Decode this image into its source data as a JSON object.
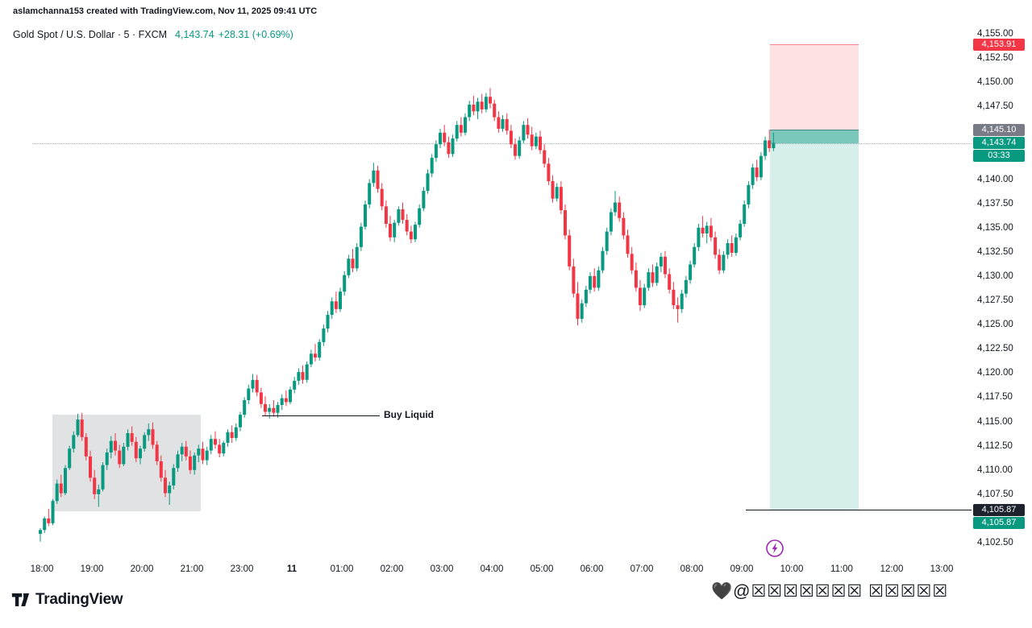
{
  "attribution": "aslamchanna153 created with TradingView.com, Nov 11, 2025 09:41 UTC",
  "header": {
    "title": "Gold Spot / U.S. Dollar · 5 · FXCM",
    "price": "4,143.74",
    "change": "+28.31 (+0.69%)"
  },
  "colors": {
    "up": "#089981",
    "down": "#f23645",
    "accent_text": "#089981",
    "risk_fill": "rgba(242,54,69,0.15)",
    "reward_fill": "rgba(8,153,129,0.16)",
    "pl_fill": "rgba(8,153,129,0.45)",
    "box_fill": "rgba(120,123,134,0.22)",
    "marker_purple": "#9c27b0",
    "text": "#131722"
  },
  "price_axis": {
    "ticks": [
      {
        "label": "4,155.00",
        "price": 4155.0
      },
      {
        "label": "4,152.50",
        "price": 4152.5
      },
      {
        "label": "4,150.00",
        "price": 4150.0
      },
      {
        "label": "4,147.50",
        "price": 4147.5
      },
      {
        "label": "4,140.00",
        "price": 4140.0
      },
      {
        "label": "4,137.50",
        "price": 4137.5
      },
      {
        "label": "4,135.00",
        "price": 4135.0
      },
      {
        "label": "4,132.50",
        "price": 4132.5
      },
      {
        "label": "4,130.00",
        "price": 4130.0
      },
      {
        "label": "4,127.50",
        "price": 4127.5
      },
      {
        "label": "4,125.00",
        "price": 4125.0
      },
      {
        "label": "4,122.50",
        "price": 4122.5
      },
      {
        "label": "4,120.00",
        "price": 4120.0
      },
      {
        "label": "4,117.50",
        "price": 4117.5
      },
      {
        "label": "4,115.00",
        "price": 4115.0
      },
      {
        "label": "4,112.50",
        "price": 4112.5
      },
      {
        "label": "4,110.00",
        "price": 4110.0
      },
      {
        "label": "4,107.50",
        "price": 4107.5
      },
      {
        "label": "4,102.50",
        "price": 4102.5
      }
    ],
    "badges": {
      "stop": {
        "label": "4,153.91",
        "price": 4153.91,
        "bg": "#f23645"
      },
      "entry": {
        "label": "4,145.10",
        "price": 4145.1,
        "bg": "#787b86"
      },
      "last": {
        "label": "4,143.74",
        "price": 4143.74,
        "bg": "#089981"
      },
      "countdown": {
        "label": "03:33",
        "bg": "#089981"
      },
      "level_line": {
        "label": "4,105.87",
        "price": 4105.87,
        "bg": "#1e222d"
      },
      "target": {
        "label": "4,105.87",
        "price": 4105.87,
        "bg": "#089981"
      }
    }
  },
  "time_axis": {
    "labels": [
      "18:00",
      "19:00",
      "20:00",
      "21:00",
      "23:00",
      "11",
      "01:00",
      "02:00",
      "03:00",
      "04:00",
      "05:00",
      "06:00",
      "07:00",
      "08:00",
      "09:00",
      "10:00",
      "11:00",
      "12:00",
      "13:00"
    ]
  },
  "footer": {
    "logo_text": "TradingView",
    "watermark_right": "🖤@☒☒☒☒☒☒☒ ☒☒☒☒☒"
  },
  "chart_data": {
    "type": "candlestick",
    "symbol": "Gold Spot / U.S. Dollar",
    "interval_minutes": 5,
    "exchange": "FXCM",
    "last_price": 4143.74,
    "change_text": "+28.31 (+0.69%)",
    "ylim": [
      4102.5,
      4155.0
    ],
    "session_note": "candles run 18:00-21:55 then 23:00-09:40 (22:00 hour closed)",
    "grid": "off",
    "annotations": {
      "short_position": {
        "entry": 4145.1,
        "stop": 4153.91,
        "target": 4105.87
      },
      "horizontal_line": 4105.87,
      "buy_liquid": {
        "text": "Buy Liquid",
        "price": 4115.6
      },
      "consolidation_box": {
        "price_high": 4115.7,
        "price_low": 4105.7
      },
      "marker_icon": "lightning-icon"
    },
    "candles": [
      [
        4103.4,
        4104.0,
        4102.6,
        4103.8
      ],
      [
        4103.8,
        4105.2,
        4103.5,
        4105.0
      ],
      [
        4105.0,
        4106.0,
        4104.2,
        4104.5
      ],
      [
        4104.5,
        4107.0,
        4104.3,
        4106.8
      ],
      [
        4106.8,
        4109.0,
        4106.5,
        4108.6
      ],
      [
        4108.6,
        4109.5,
        4107.2,
        4107.6
      ],
      [
        4107.6,
        4110.5,
        4107.4,
        4110.2
      ],
      [
        4110.2,
        4112.5,
        4110.0,
        4112.2
      ],
      [
        4112.2,
        4114.0,
        4111.8,
        4113.6
      ],
      [
        4113.6,
        4115.8,
        4113.4,
        4115.2
      ],
      [
        4115.2,
        4115.9,
        4113.0,
        4113.4
      ],
      [
        4113.4,
        4113.8,
        4111.0,
        4111.4
      ],
      [
        4111.4,
        4112.0,
        4108.8,
        4109.2
      ],
      [
        4109.2,
        4110.0,
        4107.0,
        4107.5
      ],
      [
        4107.5,
        4108.5,
        4106.2,
        4108.0
      ],
      [
        4108.0,
        4110.8,
        4107.8,
        4110.5
      ],
      [
        4110.5,
        4112.2,
        4110.0,
        4111.8
      ],
      [
        4111.8,
        4113.5,
        4111.2,
        4113.0
      ],
      [
        4113.0,
        4113.8,
        4111.5,
        4112.0
      ],
      [
        4112.0,
        4112.6,
        4110.2,
        4110.6
      ],
      [
        4110.6,
        4112.8,
        4110.4,
        4112.4
      ],
      [
        4112.4,
        4114.2,
        4112.0,
        4113.8
      ],
      [
        4113.8,
        4114.5,
        4112.5,
        4112.9
      ],
      [
        4112.9,
        4113.4,
        4110.8,
        4111.2
      ],
      [
        4111.2,
        4112.5,
        4110.6,
        4112.2
      ],
      [
        4112.2,
        4113.9,
        4111.9,
        4113.6
      ],
      [
        4113.6,
        4114.8,
        4113.0,
        4114.2
      ],
      [
        4114.2,
        4114.9,
        4112.2,
        4112.6
      ],
      [
        4112.6,
        4113.0,
        4110.5,
        4110.9
      ],
      [
        4110.9,
        4111.5,
        4108.8,
        4109.2
      ],
      [
        4109.2,
        4110.0,
        4107.2,
        4107.6
      ],
      [
        4107.6,
        4108.8,
        4106.4,
        4108.4
      ],
      [
        4108.4,
        4110.6,
        4108.0,
        4110.2
      ],
      [
        4110.2,
        4112.0,
        4109.8,
        4111.6
      ],
      [
        4111.6,
        4112.8,
        4110.9,
        4112.4
      ],
      [
        4112.4,
        4113.0,
        4111.0,
        4111.4
      ],
      [
        4111.4,
        4112.0,
        4109.6,
        4110.0
      ],
      [
        4110.0,
        4111.8,
        4109.5,
        4111.5
      ],
      [
        4111.5,
        4112.6,
        4110.8,
        4112.2
      ],
      [
        4112.2,
        4112.9,
        4110.6,
        4111.0
      ],
      [
        4111.0,
        4112.4,
        4110.5,
        4112.0
      ],
      [
        4112.0,
        4113.6,
        4111.6,
        4113.2
      ],
      [
        4113.2,
        4114.0,
        4112.2,
        4112.6
      ],
      [
        4112.6,
        4113.2,
        4111.3,
        4111.7
      ],
      [
        4111.7,
        4113.0,
        4111.4,
        4112.8
      ],
      [
        4112.8,
        4114.2,
        4112.4,
        4113.9
      ],
      [
        4113.9,
        4114.6,
        4112.8,
        4113.3
      ],
      [
        4113.3,
        4114.8,
        4113.0,
        4114.4
      ],
      [
        4114.4,
        4116.0,
        4114.0,
        4115.7
      ],
      [
        4115.7,
        4117.5,
        4115.4,
        4117.2
      ],
      [
        4117.2,
        4118.8,
        4116.8,
        4118.4
      ],
      [
        4118.4,
        4119.9,
        4118.0,
        4119.3
      ],
      [
        4119.3,
        4119.8,
        4117.6,
        4118.0
      ],
      [
        4118.0,
        4118.5,
        4116.4,
        4116.8
      ],
      [
        4116.8,
        4117.6,
        4115.6,
        4116.0
      ],
      [
        4116.0,
        4116.8,
        4115.3,
        4116.4
      ],
      [
        4116.4,
        4117.2,
        4115.5,
        4115.9
      ],
      [
        4115.9,
        4117.0,
        4115.4,
        4116.7
      ],
      [
        4116.7,
        4117.8,
        4116.2,
        4117.4
      ],
      [
        4117.4,
        4118.2,
        4116.6,
        4117.0
      ],
      [
        4117.0,
        4118.6,
        4116.8,
        4118.3
      ],
      [
        4118.3,
        4119.6,
        4117.9,
        4119.2
      ],
      [
        4119.2,
        4120.5,
        4118.8,
        4120.1
      ],
      [
        4120.1,
        4120.8,
        4118.9,
        4119.3
      ],
      [
        4119.3,
        4121.2,
        4119.0,
        4120.9
      ],
      [
        4120.9,
        4122.4,
        4120.6,
        4122.0
      ],
      [
        4122.0,
        4123.0,
        4121.2,
        4121.6
      ],
      [
        4121.6,
        4123.5,
        4121.3,
        4123.2
      ],
      [
        4123.2,
        4125.0,
        4122.8,
        4124.6
      ],
      [
        4124.6,
        4126.4,
        4124.2,
        4126.0
      ],
      [
        4126.0,
        4127.8,
        4125.6,
        4127.4
      ],
      [
        4127.4,
        4128.4,
        4126.2,
        4126.6
      ],
      [
        4126.6,
        4128.8,
        4126.3,
        4128.4
      ],
      [
        4128.4,
        4130.5,
        4128.0,
        4130.1
      ],
      [
        4130.1,
        4132.2,
        4129.8,
        4131.8
      ],
      [
        4131.8,
        4132.8,
        4130.4,
        4130.8
      ],
      [
        4130.8,
        4133.4,
        4130.5,
        4133.0
      ],
      [
        4133.0,
        4135.5,
        4132.6,
        4135.1
      ],
      [
        4135.1,
        4137.8,
        4134.8,
        4137.4
      ],
      [
        4137.4,
        4140.0,
        4137.0,
        4139.6
      ],
      [
        4139.6,
        4141.7,
        4139.2,
        4140.9
      ],
      [
        4140.9,
        4141.4,
        4138.6,
        4139.0
      ],
      [
        4139.0,
        4139.6,
        4136.8,
        4137.2
      ],
      [
        4137.2,
        4137.8,
        4135.0,
        4135.4
      ],
      [
        4135.4,
        4136.2,
        4133.6,
        4134.0
      ],
      [
        4134.0,
        4135.8,
        4133.5,
        4135.5
      ],
      [
        4135.5,
        4137.2,
        4135.2,
        4136.9
      ],
      [
        4136.9,
        4137.6,
        4135.4,
        4135.8
      ],
      [
        4135.8,
        4136.4,
        4134.2,
        4134.6
      ],
      [
        4134.6,
        4135.2,
        4133.4,
        4133.8
      ],
      [
        4133.8,
        4135.6,
        4133.5,
        4135.3
      ],
      [
        4135.3,
        4137.4,
        4135.0,
        4137.0
      ],
      [
        4137.0,
        4139.2,
        4136.7,
        4138.8
      ],
      [
        4138.8,
        4141.0,
        4138.5,
        4140.6
      ],
      [
        4140.6,
        4142.6,
        4140.2,
        4142.2
      ],
      [
        4142.2,
        4144.0,
        4141.8,
        4143.6
      ],
      [
        4143.6,
        4145.2,
        4143.2,
        4144.8
      ],
      [
        4144.8,
        4145.6,
        4143.4,
        4143.8
      ],
      [
        4143.8,
        4144.4,
        4142.2,
        4142.6
      ],
      [
        4142.6,
        4144.6,
        4142.3,
        4144.2
      ],
      [
        4144.2,
        4146.0,
        4143.9,
        4145.6
      ],
      [
        4145.6,
        4146.4,
        4144.4,
        4144.8
      ],
      [
        4144.8,
        4146.8,
        4144.5,
        4146.4
      ],
      [
        4146.4,
        4148.1,
        4146.0,
        4147.7
      ],
      [
        4147.7,
        4148.6,
        4146.6,
        4147.0
      ],
      [
        4147.0,
        4148.4,
        4146.2,
        4148.0
      ],
      [
        4148.0,
        4148.8,
        4146.8,
        4147.2
      ],
      [
        4147.2,
        4148.9,
        4146.9,
        4148.5
      ],
      [
        4148.5,
        4149.4,
        4147.3,
        4147.8
      ],
      [
        4147.8,
        4148.2,
        4146.0,
        4146.4
      ],
      [
        4146.4,
        4147.0,
        4144.8,
        4145.2
      ],
      [
        4145.2,
        4146.6,
        4144.9,
        4146.2
      ],
      [
        4146.2,
        4146.8,
        4144.6,
        4145.0
      ],
      [
        4145.0,
        4145.6,
        4143.2,
        4143.6
      ],
      [
        4143.6,
        4144.2,
        4142.0,
        4142.4
      ],
      [
        4142.4,
        4144.4,
        4142.1,
        4144.0
      ],
      [
        4144.0,
        4146.0,
        4143.7,
        4145.6
      ],
      [
        4145.6,
        4146.3,
        4144.2,
        4144.6
      ],
      [
        4144.6,
        4145.4,
        4143.0,
        4143.4
      ],
      [
        4143.4,
        4144.8,
        4143.1,
        4144.4
      ],
      [
        4144.4,
        4145.0,
        4142.6,
        4143.0
      ],
      [
        4143.0,
        4143.6,
        4141.2,
        4141.6
      ],
      [
        4141.6,
        4142.2,
        4139.4,
        4139.8
      ],
      [
        4139.8,
        4140.4,
        4137.6,
        4138.0
      ],
      [
        4138.0,
        4139.6,
        4137.7,
        4139.2
      ],
      [
        4139.2,
        4139.8,
        4136.4,
        4136.8
      ],
      [
        4136.8,
        4137.4,
        4133.8,
        4134.2
      ],
      [
        4134.2,
        4134.8,
        4130.6,
        4131.0
      ],
      [
        4131.0,
        4131.8,
        4127.8,
        4128.2
      ],
      [
        4128.2,
        4129.4,
        4124.9,
        4125.6
      ],
      [
        4125.6,
        4127.6,
        4125.2,
        4127.2
      ],
      [
        4127.2,
        4129.0,
        4126.8,
        4128.6
      ],
      [
        4128.6,
        4130.4,
        4128.2,
        4130.0
      ],
      [
        4130.0,
        4130.8,
        4128.4,
        4128.8
      ],
      [
        4128.8,
        4131.0,
        4128.5,
        4130.6
      ],
      [
        4130.6,
        4133.0,
        4130.3,
        4132.6
      ],
      [
        4132.6,
        4135.0,
        4132.2,
        4134.6
      ],
      [
        4134.6,
        4137.0,
        4134.2,
        4136.6
      ],
      [
        4136.6,
        4138.8,
        4136.2,
        4137.6
      ],
      [
        4137.6,
        4138.2,
        4135.6,
        4136.0
      ],
      [
        4136.0,
        4136.6,
        4133.8,
        4134.2
      ],
      [
        4134.2,
        4134.8,
        4131.9,
        4132.3
      ],
      [
        4132.3,
        4133.0,
        4130.2,
        4130.6
      ],
      [
        4130.6,
        4131.4,
        4128.4,
        4128.8
      ],
      [
        4128.8,
        4129.6,
        4126.4,
        4127.0
      ],
      [
        4127.0,
        4129.2,
        4126.7,
        4128.8
      ],
      [
        4128.8,
        4130.8,
        4128.5,
        4130.4
      ],
      [
        4130.4,
        4131.2,
        4128.9,
        4129.3
      ],
      [
        4129.3,
        4131.4,
        4129.0,
        4131.0
      ],
      [
        4131.0,
        4132.4,
        4130.4,
        4132.0
      ],
      [
        4132.0,
        4132.6,
        4129.8,
        4130.2
      ],
      [
        4130.2,
        4130.8,
        4128.2,
        4128.6
      ],
      [
        4128.6,
        4129.4,
        4126.6,
        4127.0
      ],
      [
        4127.0,
        4127.8,
        4125.2,
        4126.6
      ],
      [
        4126.6,
        4128.6,
        4126.2,
        4128.2
      ],
      [
        4128.2,
        4130.0,
        4127.8,
        4129.6
      ],
      [
        4129.6,
        4131.6,
        4129.2,
        4131.2
      ],
      [
        4131.2,
        4133.4,
        4130.9,
        4133.0
      ],
      [
        4133.0,
        4135.4,
        4132.6,
        4135.0
      ],
      [
        4135.0,
        4136.2,
        4134.0,
        4134.4
      ],
      [
        4134.4,
        4135.6,
        4133.4,
        4135.2
      ],
      [
        4135.2,
        4136.0,
        4133.6,
        4134.0
      ],
      [
        4134.0,
        4134.6,
        4131.8,
        4132.2
      ],
      [
        4132.2,
        4132.8,
        4130.2,
        4130.6
      ],
      [
        4130.6,
        4132.6,
        4130.3,
        4132.2
      ],
      [
        4132.2,
        4133.8,
        4131.8,
        4133.4
      ],
      [
        4133.4,
        4134.2,
        4132.0,
        4132.4
      ],
      [
        4132.4,
        4134.4,
        4132.1,
        4134.0
      ],
      [
        4134.0,
        4135.8,
        4133.7,
        4135.4
      ],
      [
        4135.4,
        4137.8,
        4135.1,
        4137.4
      ],
      [
        4137.4,
        4139.8,
        4137.0,
        4139.4
      ],
      [
        4139.4,
        4141.6,
        4139.0,
        4141.2
      ],
      [
        4141.2,
        4142.0,
        4139.8,
        4140.2
      ],
      [
        4140.2,
        4142.8,
        4139.9,
        4142.4
      ],
      [
        4142.4,
        4144.4,
        4142.0,
        4144.0
      ],
      [
        4144.0,
        4145.1,
        4142.8,
        4143.2
      ],
      [
        4143.2,
        4144.8,
        4142.9,
        4143.74
      ]
    ]
  }
}
